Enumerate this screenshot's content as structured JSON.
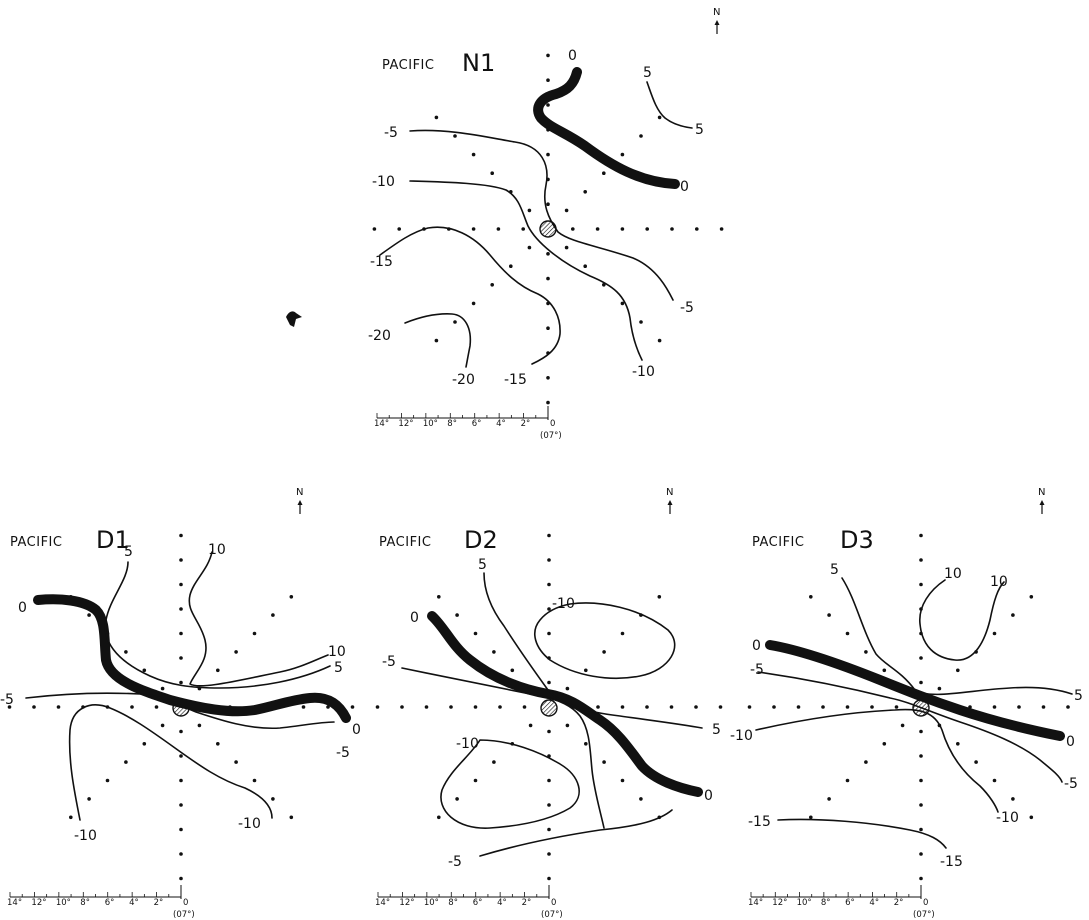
{
  "figure": {
    "panels": [
      {
        "id": "N1",
        "region": "PACIFIC",
        "code": "N1",
        "north": "N",
        "scale": {
          "ticks": [
            "14°",
            "12°",
            "10°",
            "8°",
            "6°",
            "4°",
            "2°",
            "0"
          ],
          "note": "(07°)"
        },
        "contour_labels": [
          "0",
          "0",
          "5",
          "5",
          "-5",
          "-10",
          "-15",
          "-20",
          "-20",
          "-15",
          "-10",
          "-5"
        ]
      },
      {
        "id": "D1",
        "region": "PACIFIC",
        "code": "D1",
        "north": "N",
        "scale": {
          "ticks": [
            "14°",
            "12°",
            "10°",
            "8°",
            "6°",
            "4°",
            "2°",
            "0"
          ],
          "note": "(07°)"
        },
        "contour_labels": [
          "0",
          "5",
          "10",
          "10",
          "5",
          "-5",
          "0",
          "-5",
          "-10",
          "-10"
        ]
      },
      {
        "id": "D2",
        "region": "PACIFIC",
        "code": "D2",
        "north": "N",
        "scale": {
          "ticks": [
            "14°",
            "12°",
            "10°",
            "8°",
            "6°",
            "4°",
            "2°",
            "0"
          ],
          "note": "(07°)"
        },
        "contour_labels": [
          "0",
          "5",
          "-10",
          "-5",
          "5",
          "-10",
          "0",
          "-5"
        ]
      },
      {
        "id": "D3",
        "region": "PACIFIC",
        "code": "D3",
        "north": "N",
        "scale": {
          "ticks": [
            "14°",
            "12°",
            "10°",
            "8°",
            "6°",
            "4°",
            "2°",
            "0"
          ],
          "note": "(07°)"
        },
        "contour_labels": [
          "5",
          "10",
          "10",
          "0",
          "-5",
          "5",
          "-10",
          "0",
          "-5",
          "-10",
          "-15",
          "-15"
        ]
      }
    ]
  }
}
